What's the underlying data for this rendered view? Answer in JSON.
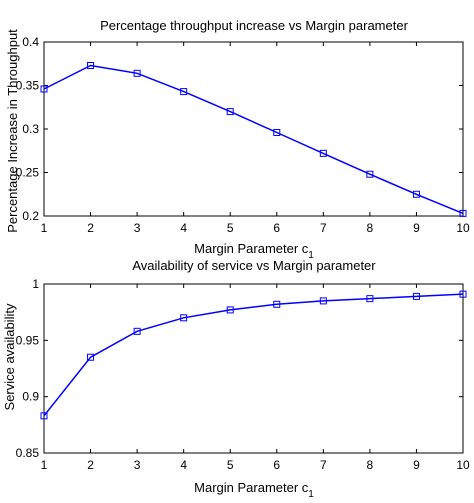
{
  "chart_data": [
    {
      "type": "line",
      "title": "Percentage throughput increase vs Margin parameter",
      "xlabel": "Margin Parameter c",
      "xlabel_subscript": "1",
      "ylabel": "Percentage Increase in Throughput",
      "xlim": [
        1,
        10
      ],
      "ylim": [
        0.2,
        0.4
      ],
      "xticks": [
        1,
        2,
        3,
        4,
        5,
        6,
        7,
        8,
        9,
        10
      ],
      "yticks": [
        0.2,
        0.25,
        0.3,
        0.35,
        0.4
      ],
      "ytick_labels": [
        "0.2",
        "0.25",
        "0.3",
        "0.35",
        "0.4"
      ],
      "grid": false,
      "marker": "square",
      "color": "#0000ff",
      "x": [
        1,
        2,
        3,
        4,
        5,
        6,
        7,
        8,
        9,
        10
      ],
      "y": [
        0.346,
        0.373,
        0.364,
        0.343,
        0.32,
        0.296,
        0.272,
        0.248,
        0.225,
        0.203
      ]
    },
    {
      "type": "line",
      "title": "Availability of service vs Margin parameter",
      "xlabel": "Margin Parameter c",
      "xlabel_subscript": "1",
      "ylabel": "Service availability",
      "xlim": [
        1,
        10
      ],
      "ylim": [
        0.85,
        1.0
      ],
      "xticks": [
        1,
        2,
        3,
        4,
        5,
        6,
        7,
        8,
        9,
        10
      ],
      "yticks": [
        0.85,
        0.9,
        0.95,
        1.0
      ],
      "ytick_labels": [
        "0.85",
        "0.9",
        "0.95",
        "1"
      ],
      "grid": false,
      "marker": "square",
      "color": "#0000ff",
      "x": [
        1,
        2,
        3,
        4,
        5,
        6,
        7,
        8,
        9,
        10
      ],
      "y": [
        0.883,
        0.935,
        0.958,
        0.97,
        0.977,
        0.982,
        0.985,
        0.987,
        0.989,
        0.991
      ]
    }
  ]
}
